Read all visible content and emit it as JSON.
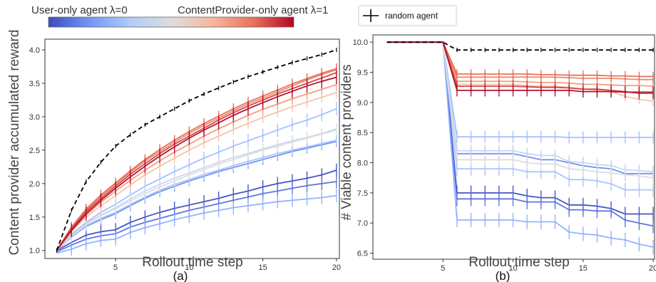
{
  "colorbar": {
    "left_label": "User-only agent λ=0",
    "right_label": "ContentProvider-only agent λ=1",
    "colors": [
      "#3b4cc0",
      "#7396f5",
      "#b1cbfc",
      "#dcdddd",
      "#f7b89c",
      "#e7745b",
      "#b40426"
    ]
  },
  "legend": {
    "label": "random agent",
    "placement": "top-right of left panel"
  },
  "chart_data": [
    {
      "type": "line",
      "panel_label": "(a)",
      "xlabel": "Rollout time step",
      "ylabel": "Content provider accumulated reward",
      "xlim": [
        0.2,
        20.2
      ],
      "ylim": [
        0.88,
        4.16
      ],
      "xticks": [
        5,
        10,
        15,
        20
      ],
      "yticks": [
        1.0,
        1.5,
        2.0,
        2.5,
        3.0,
        3.5,
        4.0
      ],
      "grid": false,
      "x": [
        1,
        2,
        3,
        4,
        5,
        6,
        7,
        8,
        9,
        10,
        11,
        12,
        13,
        14,
        15,
        16,
        17,
        18,
        19,
        20
      ],
      "random_agent": [
        1.0,
        1.6,
        2.03,
        2.32,
        2.56,
        2.73,
        2.88,
        3.0,
        3.12,
        3.24,
        3.34,
        3.43,
        3.52,
        3.6,
        3.67,
        3.74,
        3.81,
        3.87,
        3.93,
        4.0
      ],
      "series": [
        {
          "color": "#3b4cc0",
          "error": 0.1,
          "values": [
            1.0,
            1.12,
            1.23,
            1.28,
            1.31,
            1.42,
            1.5,
            1.57,
            1.63,
            1.68,
            1.73,
            1.78,
            1.84,
            1.89,
            1.95,
            2.0,
            2.04,
            2.08,
            2.13,
            2.2
          ]
        },
        {
          "color": "#5470de",
          "error": 0.1,
          "values": [
            0.98,
            1.08,
            1.17,
            1.22,
            1.25,
            1.35,
            1.42,
            1.48,
            1.54,
            1.6,
            1.65,
            1.7,
            1.75,
            1.8,
            1.85,
            1.89,
            1.93,
            1.97,
            2.0,
            2.03
          ]
        },
        {
          "color": "#8caffe",
          "error": 0.1,
          "values": [
            0.96,
            1.02,
            1.1,
            1.15,
            1.17,
            1.27,
            1.34,
            1.4,
            1.46,
            1.51,
            1.56,
            1.6,
            1.64,
            1.67,
            1.7,
            1.73,
            1.75,
            1.77,
            1.79,
            1.82
          ]
        },
        {
          "color": "#6b8df0",
          "error": 0.08,
          "values": [
            1.0,
            1.2,
            1.36,
            1.46,
            1.55,
            1.67,
            1.78,
            1.88,
            1.96,
            2.04,
            2.11,
            2.18,
            2.24,
            2.3,
            2.36,
            2.42,
            2.48,
            2.53,
            2.58,
            2.63
          ]
        },
        {
          "color": "#a5c3fe",
          "error": 0.08,
          "values": [
            1.0,
            1.2,
            1.37,
            1.48,
            1.57,
            1.69,
            1.8,
            1.9,
            1.99,
            2.06,
            2.14,
            2.2,
            2.27,
            2.33,
            2.39,
            2.45,
            2.5,
            2.55,
            2.6,
            2.65
          ]
        },
        {
          "color": "#9ebeff",
          "error": 0.1,
          "values": [
            1.0,
            1.24,
            1.42,
            1.57,
            1.69,
            1.83,
            1.96,
            2.07,
            2.18,
            2.28,
            2.38,
            2.47,
            2.56,
            2.64,
            2.72,
            2.8,
            2.88,
            2.95,
            3.03,
            3.12
          ]
        },
        {
          "color": "#c3d5f4",
          "error": 0.08,
          "values": [
            1.0,
            1.22,
            1.4,
            1.53,
            1.64,
            1.77,
            1.89,
            1.99,
            2.08,
            2.16,
            2.24,
            2.32,
            2.39,
            2.45,
            2.52,
            2.58,
            2.64,
            2.69,
            2.75,
            2.82
          ]
        },
        {
          "color": "#dddcdc",
          "error": 0.08,
          "values": [
            1.0,
            1.22,
            1.39,
            1.52,
            1.62,
            1.74,
            1.85,
            1.95,
            2.04,
            2.13,
            2.21,
            2.29,
            2.36,
            2.43,
            2.5,
            2.56,
            2.62,
            2.68,
            2.74,
            2.8
          ]
        },
        {
          "color": "#f6bfa6",
          "error": 0.08,
          "values": [
            1.0,
            1.28,
            1.5,
            1.67,
            1.82,
            1.98,
            2.13,
            2.26,
            2.38,
            2.5,
            2.61,
            2.71,
            2.81,
            2.9,
            2.99,
            3.07,
            3.15,
            3.22,
            3.29,
            3.36
          ]
        },
        {
          "color": "#f4987a",
          "error": 0.08,
          "values": [
            1.0,
            1.3,
            1.53,
            1.72,
            1.89,
            2.05,
            2.2,
            2.34,
            2.47,
            2.59,
            2.71,
            2.82,
            2.92,
            3.02,
            3.11,
            3.19,
            3.27,
            3.34,
            3.41,
            3.48
          ]
        },
        {
          "color": "#ee8468",
          "error": 0.08,
          "values": [
            1.0,
            1.34,
            1.6,
            1.81,
            1.99,
            2.17,
            2.34,
            2.48,
            2.62,
            2.75,
            2.87,
            2.98,
            3.09,
            3.19,
            3.28,
            3.37,
            3.46,
            3.55,
            3.63,
            3.7
          ]
        },
        {
          "color": "#e36c55",
          "error": 0.08,
          "values": [
            1.0,
            1.35,
            1.62,
            1.83,
            2.01,
            2.19,
            2.36,
            2.51,
            2.65,
            2.78,
            2.9,
            3.01,
            3.12,
            3.22,
            3.31,
            3.4,
            3.49,
            3.57,
            3.65,
            3.72
          ]
        },
        {
          "color": "#cc403a",
          "error": 0.08,
          "values": [
            1.0,
            1.32,
            1.58,
            1.78,
            1.96,
            2.14,
            2.3,
            2.45,
            2.59,
            2.71,
            2.83,
            2.95,
            3.06,
            3.16,
            3.25,
            3.34,
            3.42,
            3.5,
            3.58,
            3.66
          ]
        },
        {
          "color": "#b40426",
          "error": 0.1,
          "values": [
            1.0,
            1.3,
            1.55,
            1.75,
            1.93,
            2.1,
            2.26,
            2.41,
            2.55,
            2.68,
            2.8,
            2.91,
            3.02,
            3.12,
            3.21,
            3.3,
            3.38,
            3.46,
            3.53,
            3.59
          ]
        }
      ]
    },
    {
      "type": "line",
      "panel_label": "(b)",
      "xlabel": "Rollout time step",
      "ylabel": "# Viable content providers",
      "xlim": [
        0.0,
        20.1
      ],
      "ylim": [
        6.4,
        10.12
      ],
      "xticks": [
        5,
        10,
        15,
        20
      ],
      "yticks": [
        6.5,
        7.0,
        7.5,
        8.0,
        8.5,
        9.0,
        9.5,
        10.0
      ],
      "grid": false,
      "x": [
        1,
        2,
        3,
        4,
        5,
        6,
        7,
        8,
        9,
        10,
        11,
        12,
        13,
        14,
        15,
        16,
        17,
        18,
        19,
        20
      ],
      "random_agent": [
        10.0,
        10.0,
        10.0,
        10.0,
        10.0,
        9.87,
        9.87,
        9.87,
        9.87,
        9.87,
        9.87,
        9.87,
        9.87,
        9.87,
        9.87,
        9.87,
        9.87,
        9.87,
        9.87,
        9.87
      ],
      "series": [
        {
          "color": "#3b4cc0",
          "error": 0.12,
          "values": [
            10.0,
            10.0,
            10.0,
            10.0,
            10.0,
            7.5,
            7.5,
            7.5,
            7.5,
            7.5,
            7.45,
            7.42,
            7.42,
            7.3,
            7.3,
            7.28,
            7.24,
            7.15,
            7.15,
            7.15
          ]
        },
        {
          "color": "#5470de",
          "error": 0.12,
          "values": [
            10.0,
            10.0,
            10.0,
            10.0,
            10.0,
            7.4,
            7.4,
            7.4,
            7.4,
            7.4,
            7.35,
            7.35,
            7.35,
            7.22,
            7.22,
            7.2,
            7.2,
            7.05,
            7.0,
            6.95
          ]
        },
        {
          "color": "#8caffe",
          "error": 0.12,
          "values": [
            10.0,
            10.0,
            10.0,
            10.0,
            10.0,
            7.05,
            7.05,
            7.05,
            7.05,
            7.05,
            7.02,
            7.02,
            7.02,
            6.85,
            6.82,
            6.8,
            6.75,
            6.72,
            6.65,
            6.6
          ]
        },
        {
          "color": "#6b8df0",
          "error": 0.12,
          "values": [
            10.0,
            10.0,
            10.0,
            10.0,
            10.0,
            8.15,
            8.15,
            8.15,
            8.15,
            8.15,
            8.1,
            8.05,
            8.05,
            8.0,
            7.95,
            7.92,
            7.9,
            7.82,
            7.82,
            7.82
          ]
        },
        {
          "color": "#a5c3fe",
          "error": 0.12,
          "values": [
            10.0,
            10.0,
            10.0,
            10.0,
            10.0,
            7.9,
            7.9,
            7.9,
            7.9,
            7.9,
            7.85,
            7.85,
            7.85,
            7.72,
            7.72,
            7.7,
            7.65,
            7.55,
            7.55,
            7.55
          ]
        },
        {
          "color": "#9ebeff",
          "error": 0.1,
          "values": [
            10.0,
            10.0,
            10.0,
            10.0,
            10.0,
            8.43,
            8.43,
            8.43,
            8.43,
            8.43,
            8.43,
            8.43,
            8.43,
            8.42,
            8.42,
            8.42,
            8.42,
            8.42,
            8.42,
            8.42
          ]
        },
        {
          "color": "#c3d5f4",
          "error": 0.1,
          "values": [
            10.0,
            10.0,
            10.0,
            10.0,
            10.0,
            8.2,
            8.2,
            8.2,
            8.2,
            8.2,
            8.15,
            8.12,
            8.12,
            8.02,
            8.0,
            7.97,
            7.95,
            7.88,
            7.87,
            7.85
          ]
        },
        {
          "color": "#dddcdc",
          "error": 0.1,
          "values": [
            10.0,
            10.0,
            10.0,
            10.0,
            10.0,
            8.05,
            8.05,
            8.05,
            8.05,
            8.05,
            8.0,
            7.98,
            7.98,
            7.9,
            7.88,
            7.85,
            7.83,
            7.8,
            7.78,
            7.75
          ]
        },
        {
          "color": "#f6bfa6",
          "error": 0.08,
          "values": [
            10.0,
            10.0,
            10.0,
            10.0,
            10.0,
            9.3,
            9.3,
            9.3,
            9.3,
            9.3,
            9.28,
            9.27,
            9.27,
            9.25,
            9.22,
            9.2,
            9.18,
            9.1,
            9.05,
            9.02
          ]
        },
        {
          "color": "#f4987a",
          "error": 0.08,
          "values": [
            10.0,
            10.0,
            10.0,
            10.0,
            10.0,
            9.35,
            9.35,
            9.35,
            9.35,
            9.35,
            9.34,
            9.33,
            9.33,
            9.32,
            9.3,
            9.3,
            9.29,
            9.28,
            9.28,
            9.27
          ]
        },
        {
          "color": "#ee8468",
          "error": 0.08,
          "values": [
            10.0,
            10.0,
            10.0,
            10.0,
            10.0,
            9.42,
            9.42,
            9.42,
            9.42,
            9.42,
            9.42,
            9.42,
            9.42,
            9.41,
            9.4,
            9.4,
            9.4,
            9.39,
            9.38,
            9.38
          ]
        },
        {
          "color": "#e36c55",
          "error": 0.08,
          "values": [
            10.0,
            10.0,
            10.0,
            10.0,
            10.0,
            9.47,
            9.47,
            9.47,
            9.47,
            9.47,
            9.47,
            9.46,
            9.46,
            9.45,
            9.45,
            9.45,
            9.44,
            9.44,
            9.43,
            9.43
          ]
        },
        {
          "color": "#cc403a",
          "error": 0.1,
          "values": [
            10.0,
            10.0,
            10.0,
            10.0,
            10.0,
            9.27,
            9.27,
            9.27,
            9.27,
            9.27,
            9.26,
            9.25,
            9.25,
            9.24,
            9.22,
            9.22,
            9.2,
            9.18,
            9.15,
            9.15
          ]
        },
        {
          "color": "#b40426",
          "error": 0.1,
          "values": [
            10.0,
            10.0,
            10.0,
            10.0,
            10.0,
            9.2,
            9.2,
            9.2,
            9.2,
            9.2,
            9.2,
            9.2,
            9.2,
            9.2,
            9.18,
            9.18,
            9.18,
            9.17,
            9.17,
            9.17
          ]
        }
      ]
    }
  ]
}
